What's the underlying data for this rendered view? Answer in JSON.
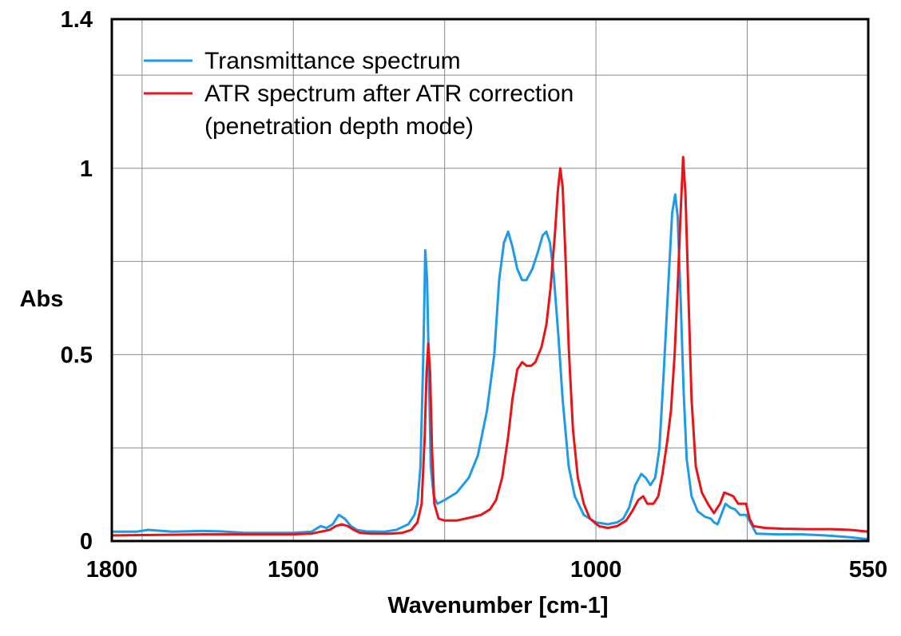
{
  "chart_data": {
    "type": "line",
    "xlabel": "Wavenumber [cm-1]",
    "ylabel": "Abs",
    "xlim": [
      1800,
      550
    ],
    "ylim": [
      0,
      1.4
    ],
    "x_reversed": true,
    "x_ticks": [
      1800,
      1500,
      1000,
      550
    ],
    "x_tick_labels": [
      "1800",
      "1500",
      "1000",
      "550"
    ],
    "x_grid": [
      1750,
      1500,
      1250,
      1000,
      750
    ],
    "y_ticks": [
      0,
      0.5,
      1,
      1.4
    ],
    "y_tick_labels": [
      "0",
      "0.5",
      "1",
      "1.4"
    ],
    "y_grid": [
      0.25,
      0.5,
      0.75,
      1.0,
      1.25
    ],
    "grid": true,
    "legend_position": "top-left",
    "series": [
      {
        "name": "Transmittance spectrum",
        "color": "#1E9BE8",
        "points": [
          [
            1800,
            0.025
          ],
          [
            1760,
            0.025
          ],
          [
            1740,
            0.03
          ],
          [
            1700,
            0.025
          ],
          [
            1650,
            0.027
          ],
          [
            1620,
            0.026
          ],
          [
            1580,
            0.022
          ],
          [
            1540,
            0.022
          ],
          [
            1500,
            0.022
          ],
          [
            1470,
            0.025
          ],
          [
            1455,
            0.04
          ],
          [
            1445,
            0.035
          ],
          [
            1435,
            0.045
          ],
          [
            1425,
            0.07
          ],
          [
            1415,
            0.06
          ],
          [
            1405,
            0.04
          ],
          [
            1395,
            0.03
          ],
          [
            1380,
            0.026
          ],
          [
            1350,
            0.025
          ],
          [
            1330,
            0.03
          ],
          [
            1310,
            0.045
          ],
          [
            1300,
            0.07
          ],
          [
            1295,
            0.1
          ],
          [
            1290,
            0.2
          ],
          [
            1286,
            0.45
          ],
          [
            1284,
            0.6
          ],
          [
            1282,
            0.78
          ],
          [
            1279,
            0.7
          ],
          [
            1276,
            0.45
          ],
          [
            1273,
            0.2
          ],
          [
            1268,
            0.12
          ],
          [
            1262,
            0.1
          ],
          [
            1250,
            0.11
          ],
          [
            1230,
            0.13
          ],
          [
            1210,
            0.17
          ],
          [
            1195,
            0.23
          ],
          [
            1180,
            0.35
          ],
          [
            1168,
            0.5
          ],
          [
            1160,
            0.7
          ],
          [
            1152,
            0.8
          ],
          [
            1145,
            0.83
          ],
          [
            1138,
            0.79
          ],
          [
            1130,
            0.73
          ],
          [
            1122,
            0.7
          ],
          [
            1115,
            0.7
          ],
          [
            1105,
            0.73
          ],
          [
            1095,
            0.78
          ],
          [
            1088,
            0.82
          ],
          [
            1082,
            0.83
          ],
          [
            1076,
            0.8
          ],
          [
            1070,
            0.72
          ],
          [
            1062,
            0.55
          ],
          [
            1055,
            0.38
          ],
          [
            1045,
            0.2
          ],
          [
            1035,
            0.12
          ],
          [
            1020,
            0.07
          ],
          [
            1000,
            0.05
          ],
          [
            980,
            0.045
          ],
          [
            965,
            0.05
          ],
          [
            955,
            0.06
          ],
          [
            945,
            0.09
          ],
          [
            935,
            0.15
          ],
          [
            925,
            0.18
          ],
          [
            918,
            0.17
          ],
          [
            910,
            0.15
          ],
          [
            902,
            0.17
          ],
          [
            895,
            0.25
          ],
          [
            888,
            0.45
          ],
          [
            880,
            0.7
          ],
          [
            874,
            0.88
          ],
          [
            869,
            0.93
          ],
          [
            865,
            0.87
          ],
          [
            860,
            0.65
          ],
          [
            855,
            0.4
          ],
          [
            850,
            0.22
          ],
          [
            842,
            0.12
          ],
          [
            832,
            0.08
          ],
          [
            820,
            0.065
          ],
          [
            810,
            0.06
          ],
          [
            805,
            0.05
          ],
          [
            799,
            0.045
          ],
          [
            793,
            0.07
          ],
          [
            786,
            0.1
          ],
          [
            778,
            0.09
          ],
          [
            770,
            0.085
          ],
          [
            762,
            0.07
          ],
          [
            752,
            0.07
          ],
          [
            745,
            0.05
          ],
          [
            735,
            0.02
          ],
          [
            700,
            0.018
          ],
          [
            660,
            0.018
          ],
          [
            620,
            0.015
          ],
          [
            580,
            0.01
          ],
          [
            550,
            0.005
          ]
        ]
      },
      {
        "name": "ATR spectrum after ATR correction (penetration depth mode)",
        "color": "#E81418",
        "points": [
          [
            1800,
            0.015
          ],
          [
            1750,
            0.016
          ],
          [
            1700,
            0.017
          ],
          [
            1650,
            0.018
          ],
          [
            1600,
            0.018
          ],
          [
            1550,
            0.018
          ],
          [
            1500,
            0.018
          ],
          [
            1470,
            0.02
          ],
          [
            1455,
            0.025
          ],
          [
            1440,
            0.03
          ],
          [
            1430,
            0.04
          ],
          [
            1420,
            0.045
          ],
          [
            1410,
            0.04
          ],
          [
            1400,
            0.03
          ],
          [
            1390,
            0.022
          ],
          [
            1370,
            0.02
          ],
          [
            1340,
            0.02
          ],
          [
            1320,
            0.022
          ],
          [
            1305,
            0.03
          ],
          [
            1295,
            0.05
          ],
          [
            1288,
            0.1
          ],
          [
            1283,
            0.28
          ],
          [
            1280,
            0.45
          ],
          [
            1277,
            0.53
          ],
          [
            1274,
            0.45
          ],
          [
            1271,
            0.25
          ],
          [
            1267,
            0.1
          ],
          [
            1260,
            0.06
          ],
          [
            1250,
            0.055
          ],
          [
            1230,
            0.055
          ],
          [
            1210,
            0.062
          ],
          [
            1190,
            0.07
          ],
          [
            1175,
            0.085
          ],
          [
            1165,
            0.11
          ],
          [
            1155,
            0.17
          ],
          [
            1145,
            0.28
          ],
          [
            1138,
            0.38
          ],
          [
            1130,
            0.46
          ],
          [
            1122,
            0.48
          ],
          [
            1115,
            0.47
          ],
          [
            1107,
            0.47
          ],
          [
            1100,
            0.48
          ],
          [
            1090,
            0.52
          ],
          [
            1082,
            0.58
          ],
          [
            1075,
            0.68
          ],
          [
            1068,
            0.82
          ],
          [
            1063,
            0.94
          ],
          [
            1059,
            1.0
          ],
          [
            1055,
            0.95
          ],
          [
            1050,
            0.75
          ],
          [
            1045,
            0.52
          ],
          [
            1038,
            0.3
          ],
          [
            1030,
            0.17
          ],
          [
            1020,
            0.1
          ],
          [
            1010,
            0.06
          ],
          [
            995,
            0.04
          ],
          [
            980,
            0.035
          ],
          [
            965,
            0.04
          ],
          [
            950,
            0.055
          ],
          [
            940,
            0.08
          ],
          [
            930,
            0.11
          ],
          [
            922,
            0.12
          ],
          [
            915,
            0.1
          ],
          [
            905,
            0.1
          ],
          [
            897,
            0.12
          ],
          [
            890,
            0.18
          ],
          [
            882,
            0.27
          ],
          [
            876,
            0.35
          ],
          [
            870,
            0.5
          ],
          [
            865,
            0.68
          ],
          [
            860,
            0.88
          ],
          [
            856,
            1.03
          ],
          [
            852,
            0.93
          ],
          [
            847,
            0.65
          ],
          [
            842,
            0.38
          ],
          [
            835,
            0.2
          ],
          [
            825,
            0.13
          ],
          [
            815,
            0.1
          ],
          [
            805,
            0.075
          ],
          [
            795,
            0.1
          ],
          [
            788,
            0.13
          ],
          [
            780,
            0.125
          ],
          [
            773,
            0.12
          ],
          [
            765,
            0.1
          ],
          [
            758,
            0.1
          ],
          [
            752,
            0.1
          ],
          [
            746,
            0.06
          ],
          [
            740,
            0.04
          ],
          [
            720,
            0.035
          ],
          [
            690,
            0.033
          ],
          [
            650,
            0.032
          ],
          [
            610,
            0.032
          ],
          [
            580,
            0.03
          ],
          [
            550,
            0.025
          ]
        ]
      }
    ]
  },
  "legend": {
    "items": [
      {
        "lines": [
          "Transmittance spectrum"
        ],
        "color": "#1E9BE8"
      },
      {
        "lines": [
          "ATR spectrum after ATR correction",
          "(penetration depth mode)"
        ],
        "color": "#E81418"
      }
    ]
  }
}
